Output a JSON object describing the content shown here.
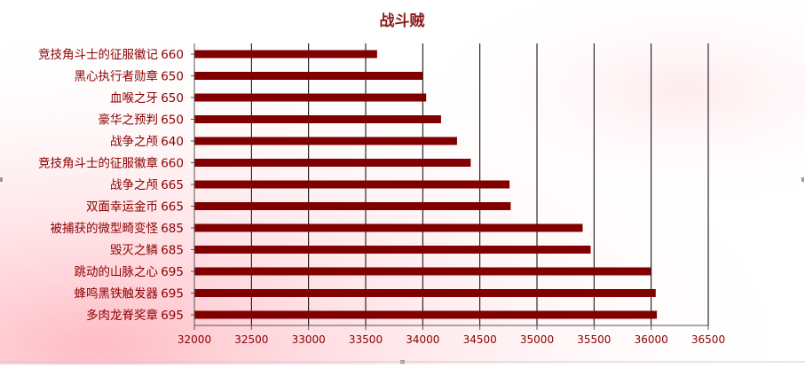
{
  "chart_data": {
    "type": "bar",
    "orientation": "horizontal",
    "title": "战斗贼",
    "xlabel": "",
    "ylabel": "",
    "categories": [
      "竞技角斗士的征服徽记",
      "黑心执行者勋章",
      "血喉之牙",
      "豪华之预判",
      "战争之颅",
      "竞技角斗士的征服徽章",
      "战争之颅",
      "双面幸运金币",
      "被捕获的微型畸变怪",
      "毁灭之鳞",
      "跳动的山脉之心",
      "蜂鸣黑铁触发器",
      "多肉龙脊奖章"
    ],
    "item_levels": [
      "660",
      "650",
      "650",
      "650",
      "640",
      "660",
      "665",
      "665",
      "685",
      "685",
      "695",
      "695",
      "695"
    ],
    "values": [
      33600,
      34000,
      34030,
      34160,
      34300,
      34420,
      34760,
      34770,
      35400,
      35470,
      36000,
      36040,
      36050
    ],
    "xlim": [
      32000,
      36500
    ],
    "xticks": [
      "32000",
      "32500",
      "33000",
      "33500",
      "34000",
      "34500",
      "35000",
      "35500",
      "36000",
      "36500"
    ],
    "grid": "vertical",
    "legend": "none",
    "colors": {
      "bar": "#800000",
      "title": "#8b1a1a",
      "label": "#8b0000",
      "grid": "#000000",
      "background_glow": "#ffb3bc"
    }
  }
}
